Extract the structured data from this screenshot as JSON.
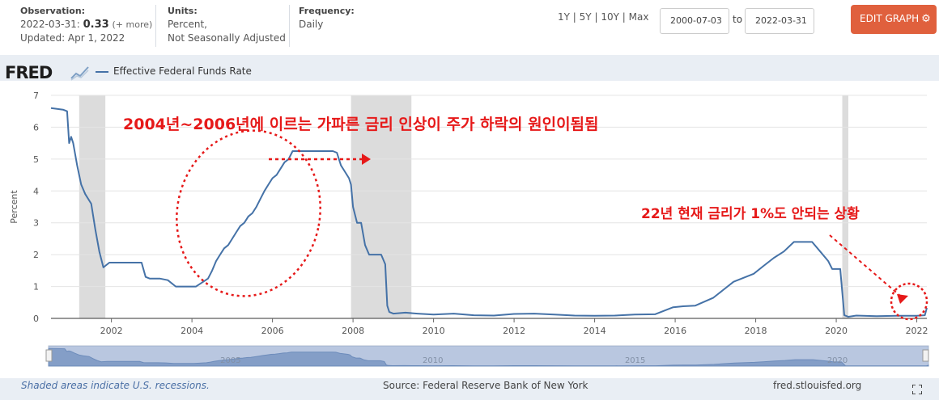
{
  "header": {
    "observation_label": "Observation:",
    "observation_date": "2022-03-31:",
    "observation_value": "0.33",
    "observation_more": "(+ more)",
    "updated": "Updated: Apr 1, 2022",
    "units_label": "Units:",
    "units_line1": "Percent,",
    "units_line2": "Not Seasonally Adjusted",
    "frequency_label": "Frequency:",
    "frequency_value": "Daily",
    "ranges": [
      "1Y",
      "5Y",
      "10Y",
      "Max"
    ],
    "range_separator": "|",
    "start_date": "2000-07-03",
    "to_label": "to",
    "end_date": "2022-03-31",
    "edit_button": "EDIT GRAPH",
    "gear_icon": "gear-icon"
  },
  "logo": {
    "text": "FRED"
  },
  "footer": {
    "recession_note": "Shaded areas indicate U.S. recessions.",
    "source": "Source: Federal Reserve Bank of New York",
    "site": "fred.stlouisfed.org"
  },
  "annotations": {
    "main": "2004년~2006년에 이르는 가파른 금리 인상이 주가 하락의 원인이됨됨",
    "current": "22년 현재 금리가 1%도 안되는 상황"
  },
  "colors": {
    "line": "#4572a7",
    "recession": "#dcdcdc",
    "annotation": "#e61919",
    "button": "#e0603d"
  },
  "navigator": {
    "tick_labels": [
      "2005",
      "2010",
      "2015",
      "2020"
    ]
  },
  "chart_data": {
    "type": "line",
    "title": "",
    "ylabel": "Percent",
    "xlabel": "",
    "ylim": [
      0,
      7
    ],
    "xlim": [
      2000.5,
      2022.25
    ],
    "yticks": [
      0,
      1,
      2,
      3,
      4,
      5,
      6,
      7
    ],
    "xticks": [
      2002,
      2004,
      2006,
      2008,
      2010,
      2012,
      2014,
      2016,
      2018,
      2020,
      2022
    ],
    "recessions": [
      [
        2001.2,
        2001.85
      ],
      [
        2007.95,
        2009.45
      ],
      [
        2020.15,
        2020.3
      ]
    ],
    "legend": "top-left",
    "series": [
      {
        "name": "Effective Federal Funds Rate",
        "x": [
          2000.5,
          2000.8,
          2000.9,
          2000.95,
          2001.0,
          2001.05,
          2001.15,
          2001.25,
          2001.35,
          2001.5,
          2001.6,
          2001.7,
          2001.8,
          2001.95,
          2002.0,
          2002.2,
          2002.4,
          2002.6,
          2002.75,
          2002.85,
          2002.95,
          2003.2,
          2003.4,
          2003.6,
          2003.75,
          2003.9,
          2004.1,
          2004.4,
          2004.5,
          2004.6,
          2004.7,
          2004.8,
          2004.9,
          2005.0,
          2005.1,
          2005.2,
          2005.3,
          2005.4,
          2005.5,
          2005.6,
          2005.7,
          2005.8,
          2005.9,
          2006.0,
          2006.1,
          2006.2,
          2006.3,
          2006.4,
          2006.5,
          2006.7,
          2006.9,
          2007.0,
          2007.3,
          2007.5,
          2007.6,
          2007.7,
          2007.8,
          2007.9,
          2007.95,
          2008.0,
          2008.1,
          2008.2,
          2008.3,
          2008.4,
          2008.5,
          2008.6,
          2008.7,
          2008.8,
          2008.85,
          2008.9,
          2009.0,
          2009.3,
          2009.6,
          2010.0,
          2010.5,
          2011.0,
          2011.5,
          2012.0,
          2012.5,
          2013.0,
          2013.5,
          2014.0,
          2014.5,
          2015.0,
          2015.5,
          2015.95,
          2016.2,
          2016.5,
          2016.95,
          2017.2,
          2017.45,
          2017.95,
          2018.2,
          2018.45,
          2018.7,
          2018.95,
          2019.4,
          2019.6,
          2019.8,
          2019.9,
          2020.1,
          2020.2,
          2020.3,
          2020.5,
          2021.0,
          2021.5,
          2022.0,
          2022.2,
          2022.25
        ],
        "y": [
          6.6,
          6.55,
          6.5,
          5.5,
          5.7,
          5.5,
          4.8,
          4.2,
          3.9,
          3.6,
          2.8,
          2.1,
          1.6,
          1.75,
          1.75,
          1.75,
          1.75,
          1.75,
          1.75,
          1.3,
          1.25,
          1.25,
          1.2,
          1.0,
          1.0,
          1.0,
          1.0,
          1.25,
          1.5,
          1.8,
          2.0,
          2.2,
          2.3,
          2.5,
          2.7,
          2.9,
          3.0,
          3.2,
          3.3,
          3.5,
          3.75,
          4.0,
          4.2,
          4.4,
          4.5,
          4.7,
          4.9,
          5.0,
          5.25,
          5.25,
          5.25,
          5.25,
          5.25,
          5.25,
          5.2,
          4.8,
          4.6,
          4.4,
          4.2,
          3.5,
          3.0,
          3.0,
          2.3,
          2.0,
          2.0,
          2.0,
          2.0,
          1.7,
          0.4,
          0.2,
          0.15,
          0.18,
          0.15,
          0.12,
          0.15,
          0.1,
          0.09,
          0.14,
          0.15,
          0.12,
          0.09,
          0.08,
          0.09,
          0.12,
          0.13,
          0.35,
          0.38,
          0.4,
          0.65,
          0.9,
          1.15,
          1.4,
          1.65,
          1.9,
          2.1,
          2.4,
          2.4,
          2.1,
          1.8,
          1.55,
          1.55,
          0.1,
          0.05,
          0.09,
          0.07,
          0.08,
          0.08,
          0.1,
          0.33
        ]
      }
    ]
  }
}
